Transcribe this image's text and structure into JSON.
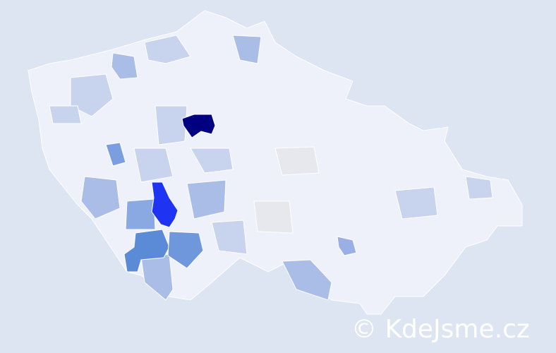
{
  "map": {
    "colors": {
      "background": "#dce5f1",
      "base": "#eef1fa",
      "highest": "#000080",
      "high": "#1e34f2",
      "medium": "#5b8ad6",
      "medium_light": "#7b9ee0",
      "light": "#a9bde6",
      "lighter": "#c8d4ee",
      "neutral": "#e6e8ee"
    }
  },
  "watermark": {
    "text": "© KdeJsme.cz"
  }
}
